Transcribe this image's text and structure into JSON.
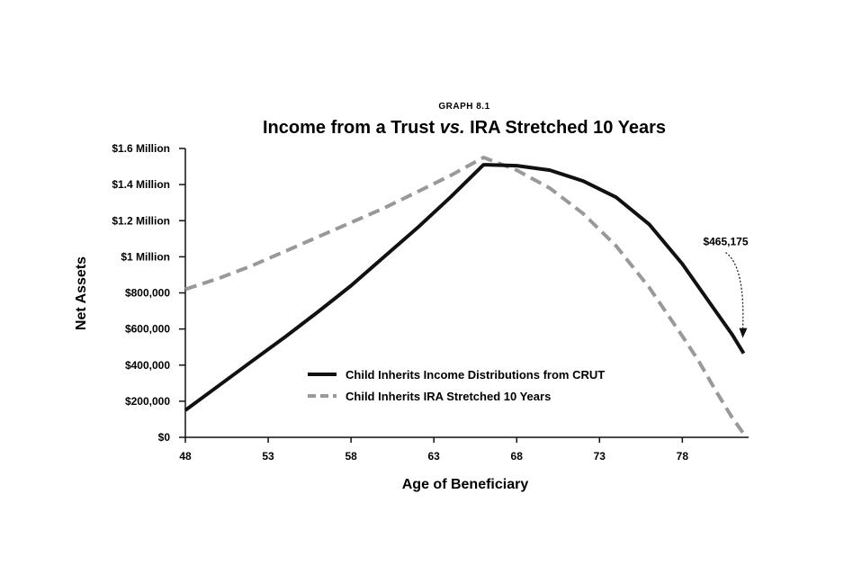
{
  "chart_data": {
    "type": "line",
    "supertitle": "GRAPH 8.1",
    "title": "Income from a Trust vs. IRA Stretched 10 Years",
    "title_parts": {
      "before": "Income from a Trust ",
      "italic": "vs.",
      "after": " IRA Stretched 10 Years"
    },
    "xlabel": "Age of Beneficiary",
    "ylabel": "Net Assets",
    "xlim": [
      48,
      82
    ],
    "ylim": [
      0,
      1600000
    ],
    "x_ticks": [
      48,
      53,
      58,
      63,
      68,
      73,
      78
    ],
    "y_ticks": [
      {
        "value": 0,
        "label": "$0"
      },
      {
        "value": 200000,
        "label": "$200,000"
      },
      {
        "value": 400000,
        "label": "$400,000"
      },
      {
        "value": 600000,
        "label": "$600,000"
      },
      {
        "value": 800000,
        "label": "$800,000"
      },
      {
        "value": 1000000,
        "label": "$1 Million"
      },
      {
        "value": 1200000,
        "label": "$1.2 Million"
      },
      {
        "value": 1400000,
        "label": "$1.4 Million"
      },
      {
        "value": 1600000,
        "label": "$1.6 Million"
      }
    ],
    "legend_position": "center",
    "grid": false,
    "series": [
      {
        "name": "Child Inherits Income Distributions from CRUT",
        "color": "#111111",
        "style": "solid",
        "x": [
          48,
          50,
          52,
          54,
          56,
          58,
          60,
          62,
          64,
          66,
          66.2,
          68,
          70,
          72,
          74,
          76,
          78,
          79,
          80,
          81,
          81.7
        ],
        "y": [
          150000,
          285000,
          420000,
          555000,
          695000,
          840000,
          1000000,
          1160000,
          1330000,
          1510000,
          1510000,
          1505000,
          1480000,
          1420000,
          1330000,
          1180000,
          960000,
          830000,
          700000,
          570000,
          465175
        ]
      },
      {
        "name": "Child Inherits IRA Stretched 10 Years",
        "color": "#999999",
        "style": "dashed",
        "x": [
          48,
          50,
          52,
          54,
          56,
          58,
          60,
          62,
          64,
          66,
          68,
          70,
          72,
          74,
          76,
          78,
          79,
          80,
          81,
          81.7
        ],
        "y": [
          820000,
          880000,
          950000,
          1030000,
          1110000,
          1190000,
          1270000,
          1360000,
          1450000,
          1550000,
          1480000,
          1380000,
          1240000,
          1060000,
          830000,
          560000,
          420000,
          260000,
          110000,
          20000
        ]
      }
    ],
    "annotations": [
      {
        "text": "$465,175",
        "x": 81.7,
        "y": 465175
      }
    ]
  }
}
